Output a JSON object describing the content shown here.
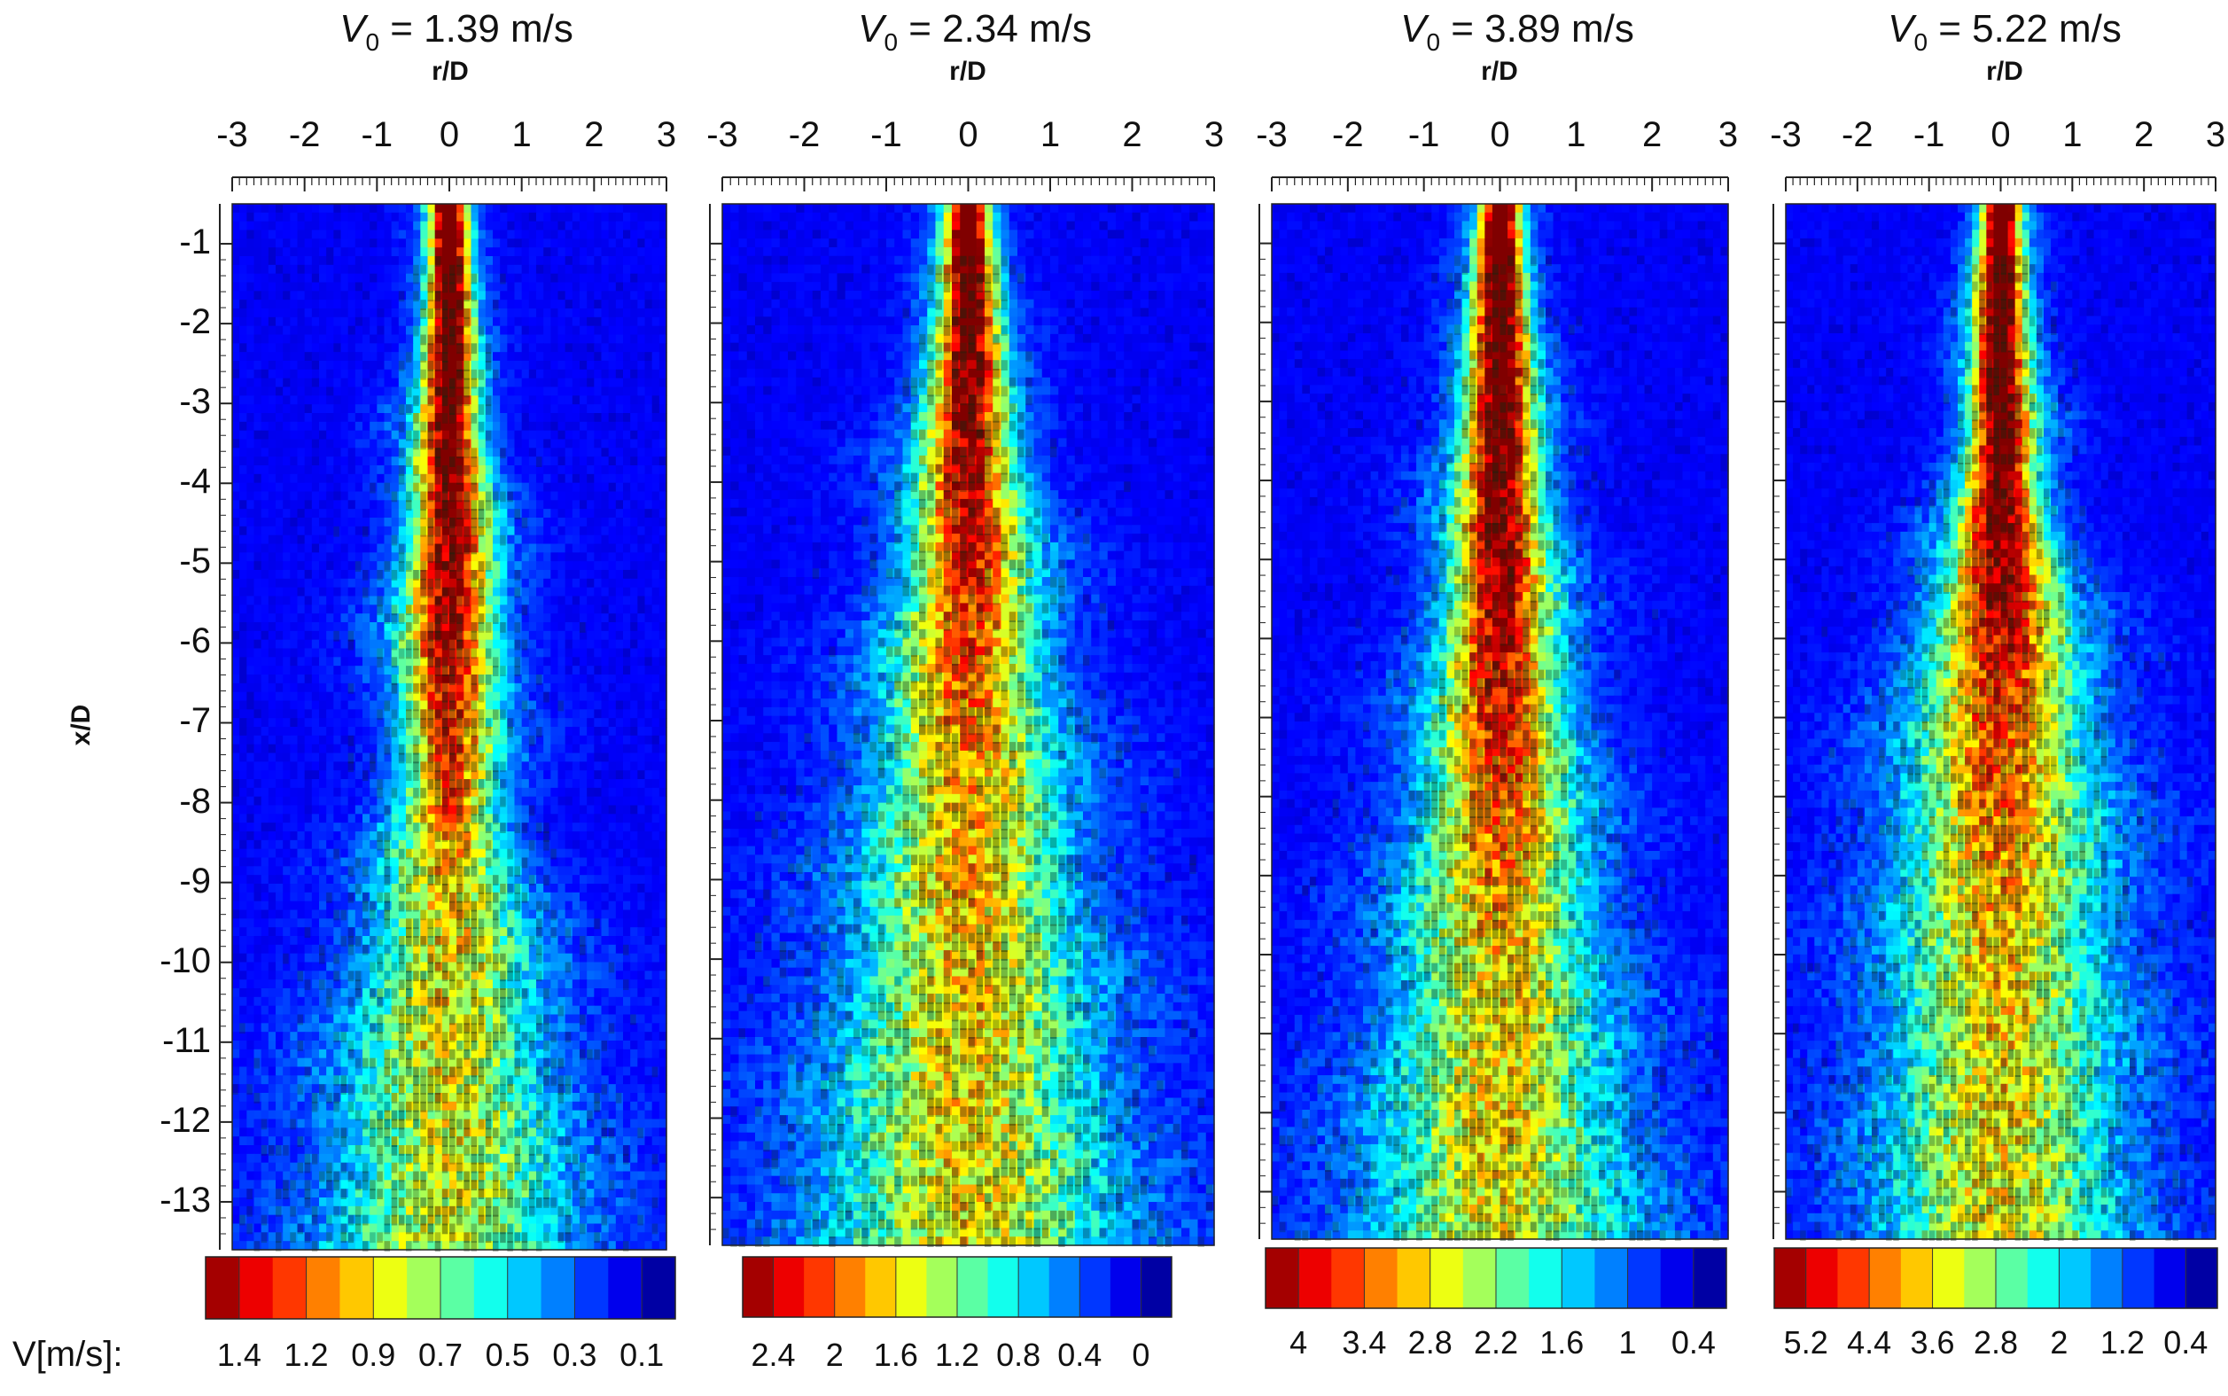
{
  "figure": {
    "ylabel": "x/D",
    "colorbar_prefix": "V[m/s]:"
  },
  "chart_data": [
    {
      "type": "heatmap",
      "title_symbol": "V",
      "title_sub": "0",
      "title_value": "= 1.39 m/s",
      "xlabel": "r/D",
      "ylabel": "x/D",
      "xlim": [
        -3,
        3
      ],
      "ylim": [
        -13.6,
        -0.5
      ],
      "xticks": [
        "-3",
        "-2",
        "-1",
        "0",
        "1",
        "2",
        "3"
      ],
      "yticks": [
        "-1",
        "-2",
        "-3",
        "-4",
        "-5",
        "-6",
        "-7",
        "-8",
        "-9",
        "-10",
        "-11",
        "-12",
        "-13"
      ],
      "colorbar": {
        "vmax": 1.4,
        "vmin": 0,
        "labels": [
          "1.4",
          "1.2",
          "0.9",
          "0.7",
          "0.5",
          "0.3",
          "0.1"
        ]
      },
      "jet_profile": [
        {
          "x": -0.5,
          "w": 0.25,
          "core": 1.0
        },
        {
          "x": -2.0,
          "w": 0.3,
          "core": 0.95
        },
        {
          "x": -4.0,
          "w": 0.45,
          "core": 0.85
        },
        {
          "x": -6.0,
          "w": 0.6,
          "core": 0.75
        },
        {
          "x": -8.0,
          "w": 0.55,
          "core": 0.6
        },
        {
          "x": -9.0,
          "w": 0.8,
          "core": 0.45
        },
        {
          "x": -11.0,
          "w": 1.1,
          "core": 0.4
        },
        {
          "x": -13.6,
          "w": 1.4,
          "core": 0.35
        }
      ]
    },
    {
      "type": "heatmap",
      "title_symbol": "V",
      "title_sub": "0",
      "title_value": "= 2.34 m/s",
      "xlabel": "r/D",
      "ylabel": "x/D",
      "xlim": [
        -3,
        3
      ],
      "ylim": [
        -13.6,
        -0.5
      ],
      "xticks": [
        "-3",
        "-2",
        "-1",
        "0",
        "1",
        "2",
        "3"
      ],
      "yticks": [],
      "colorbar": {
        "vmax": 2.4,
        "vmin": 0,
        "labels": [
          "2.4",
          "2",
          "1.6",
          "1.2",
          "0.8",
          "0.4",
          "0"
        ]
      },
      "jet_profile": [
        {
          "x": -0.5,
          "w": 0.25,
          "core": 1.0
        },
        {
          "x": -2.0,
          "w": 0.35,
          "core": 0.9
        },
        {
          "x": -4.0,
          "w": 0.55,
          "core": 0.75
        },
        {
          "x": -6.0,
          "w": 0.75,
          "core": 0.6
        },
        {
          "x": -8.0,
          "w": 0.95,
          "core": 0.5
        },
        {
          "x": -10.0,
          "w": 1.15,
          "core": 0.45
        },
        {
          "x": -13.6,
          "w": 1.5,
          "core": 0.4
        }
      ]
    },
    {
      "type": "heatmap",
      "title_symbol": "V",
      "title_sub": "0",
      "title_value": "= 3.89 m/s",
      "xlabel": "r/D",
      "ylabel": "x/D",
      "xlim": [
        -3,
        3
      ],
      "ylim": [
        -13.6,
        -0.5
      ],
      "xticks": [
        "-3",
        "-2",
        "-1",
        "0",
        "1",
        "2",
        "3"
      ],
      "yticks": [],
      "colorbar": {
        "vmax": 4.0,
        "vmin": 0,
        "labels": [
          "4",
          "3.4",
          "2.8",
          "2.2",
          "1.6",
          "1",
          "0.4"
        ]
      },
      "jet_profile": [
        {
          "x": -0.5,
          "w": 0.25,
          "core": 1.0
        },
        {
          "x": -2.0,
          "w": 0.35,
          "core": 0.95
        },
        {
          "x": -4.0,
          "w": 0.5,
          "core": 0.85
        },
        {
          "x": -6.0,
          "w": 0.65,
          "core": 0.75
        },
        {
          "x": -8.0,
          "w": 0.85,
          "core": 0.6
        },
        {
          "x": -10.0,
          "w": 1.05,
          "core": 0.45
        },
        {
          "x": -13.6,
          "w": 1.45,
          "core": 0.4
        }
      ]
    },
    {
      "type": "heatmap",
      "title_symbol": "V",
      "title_sub": "0",
      "title_value": "= 5.22 m/s",
      "xlabel": "r/D",
      "ylabel": "x/D",
      "xlim": [
        -3,
        3
      ],
      "ylim": [
        -13.6,
        -0.5
      ],
      "xticks": [
        "-3",
        "-2",
        "-1",
        "0",
        "1",
        "2",
        "3"
      ],
      "yticks": [],
      "colorbar": {
        "vmax": 5.2,
        "vmin": 0,
        "labels": [
          "5.2",
          "4.4",
          "3.6",
          "2.8",
          "2",
          "1.2",
          "0.4"
        ]
      },
      "jet_profile": [
        {
          "x": -0.5,
          "w": 0.25,
          "core": 1.0
        },
        {
          "x": -2.0,
          "w": 0.35,
          "core": 0.95
        },
        {
          "x": -4.0,
          "w": 0.45,
          "core": 0.9
        },
        {
          "x": -6.0,
          "w": 0.85,
          "core": 0.7
        },
        {
          "x": -8.0,
          "w": 1.1,
          "core": 0.55
        },
        {
          "x": -10.0,
          "w": 1.2,
          "core": 0.45
        },
        {
          "x": -13.6,
          "w": 1.4,
          "core": 0.4
        }
      ]
    }
  ]
}
